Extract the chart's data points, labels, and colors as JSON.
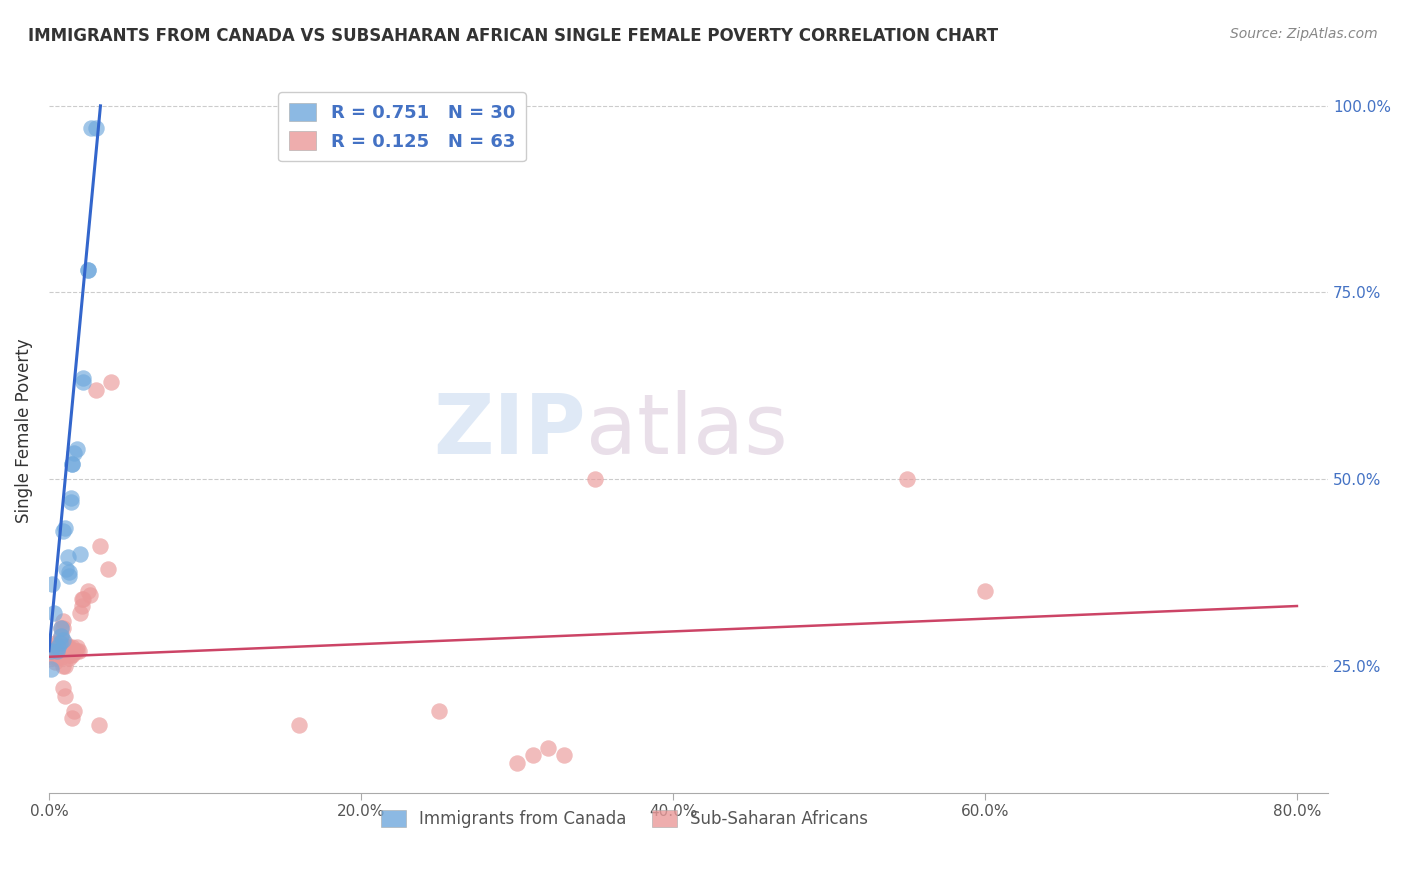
{
  "title": "IMMIGRANTS FROM CANADA VS SUBSAHARAN AFRICAN SINGLE FEMALE POVERTY CORRELATION CHART",
  "source": "Source: ZipAtlas.com",
  "ylabel": "Single Female Poverty",
  "blue_color": "#6fa8dc",
  "pink_color": "#ea9999",
  "blue_line_color": "#3366cc",
  "pink_line_color": "#cc4466",
  "watermark_zip": "ZIP",
  "watermark_atlas": "atlas",
  "blue_scatter": [
    [
      0.005,
      0.27
    ],
    [
      0.006,
      0.275
    ],
    [
      0.007,
      0.28
    ],
    [
      0.008,
      0.29
    ],
    [
      0.008,
      0.3
    ],
    [
      0.009,
      0.285
    ],
    [
      0.009,
      0.43
    ],
    [
      0.01,
      0.435
    ],
    [
      0.011,
      0.38
    ],
    [
      0.012,
      0.395
    ],
    [
      0.013,
      0.37
    ],
    [
      0.013,
      0.375
    ],
    [
      0.014,
      0.47
    ],
    [
      0.014,
      0.475
    ],
    [
      0.015,
      0.52
    ],
    [
      0.015,
      0.52
    ],
    [
      0.016,
      0.535
    ],
    [
      0.018,
      0.54
    ],
    [
      0.02,
      0.4
    ],
    [
      0.022,
      0.63
    ],
    [
      0.022,
      0.635
    ],
    [
      0.025,
      0.78
    ],
    [
      0.025,
      0.78
    ],
    [
      0.027,
      0.97
    ],
    [
      0.03,
      0.97
    ],
    [
      0.002,
      0.36
    ],
    [
      0.003,
      0.32
    ],
    [
      0.001,
      0.27
    ],
    [
      0.001,
      0.245
    ]
  ],
  "pink_scatter": [
    [
      0.002,
      0.27
    ],
    [
      0.003,
      0.26
    ],
    [
      0.003,
      0.265
    ],
    [
      0.004,
      0.255
    ],
    [
      0.004,
      0.28
    ],
    [
      0.005,
      0.27
    ],
    [
      0.005,
      0.26
    ],
    [
      0.005,
      0.27
    ],
    [
      0.005,
      0.275
    ],
    [
      0.006,
      0.28
    ],
    [
      0.006,
      0.265
    ],
    [
      0.007,
      0.27
    ],
    [
      0.007,
      0.275
    ],
    [
      0.007,
      0.265
    ],
    [
      0.007,
      0.26
    ],
    [
      0.008,
      0.28
    ],
    [
      0.008,
      0.3
    ],
    [
      0.008,
      0.29
    ],
    [
      0.009,
      0.3
    ],
    [
      0.009,
      0.31
    ],
    [
      0.009,
      0.25
    ],
    [
      0.009,
      0.22
    ],
    [
      0.01,
      0.28
    ],
    [
      0.01,
      0.21
    ],
    [
      0.01,
      0.25
    ],
    [
      0.011,
      0.275
    ],
    [
      0.011,
      0.27
    ],
    [
      0.012,
      0.27
    ],
    [
      0.012,
      0.265
    ],
    [
      0.012,
      0.275
    ],
    [
      0.013,
      0.26
    ],
    [
      0.013,
      0.275
    ],
    [
      0.014,
      0.265
    ],
    [
      0.014,
      0.27
    ],
    [
      0.015,
      0.265
    ],
    [
      0.015,
      0.275
    ],
    [
      0.015,
      0.18
    ],
    [
      0.016,
      0.19
    ],
    [
      0.017,
      0.27
    ],
    [
      0.018,
      0.27
    ],
    [
      0.018,
      0.275
    ],
    [
      0.019,
      0.27
    ],
    [
      0.02,
      0.32
    ],
    [
      0.021,
      0.33
    ],
    [
      0.021,
      0.34
    ],
    [
      0.022,
      0.34
    ],
    [
      0.025,
      0.35
    ],
    [
      0.026,
      0.345
    ],
    [
      0.03,
      0.62
    ],
    [
      0.032,
      0.17
    ],
    [
      0.033,
      0.41
    ],
    [
      0.038,
      0.38
    ],
    [
      0.04,
      0.63
    ],
    [
      0.16,
      0.17
    ],
    [
      0.25,
      0.19
    ],
    [
      0.3,
      0.12
    ],
    [
      0.31,
      0.13
    ],
    [
      0.32,
      0.14
    ],
    [
      0.33,
      0.13
    ],
    [
      0.35,
      0.5
    ],
    [
      0.55,
      0.5
    ],
    [
      0.6,
      0.35
    ]
  ],
  "blue_line_x": [
    0.0,
    0.033
  ],
  "blue_line_y": [
    0.27,
    1.0
  ],
  "pink_line_x": [
    0.0,
    0.8
  ],
  "pink_line_y": [
    0.262,
    0.33
  ],
  "xlim": [
    0.0,
    0.82
  ],
  "ylim": [
    0.08,
    1.05
  ],
  "x_ticks": [
    0.0,
    0.2,
    0.4,
    0.6,
    0.8
  ],
  "x_tick_labels": [
    "0.0%",
    "20.0%",
    "40.0%",
    "60.0%",
    "80.0%"
  ],
  "y_ticks": [
    0.25,
    0.5,
    0.75,
    1.0
  ],
  "y_tick_labels": [
    "25.0%",
    "50.0%",
    "75.0%",
    "100.0%"
  ],
  "figsize": [
    14.06,
    8.92
  ],
  "dpi": 100
}
